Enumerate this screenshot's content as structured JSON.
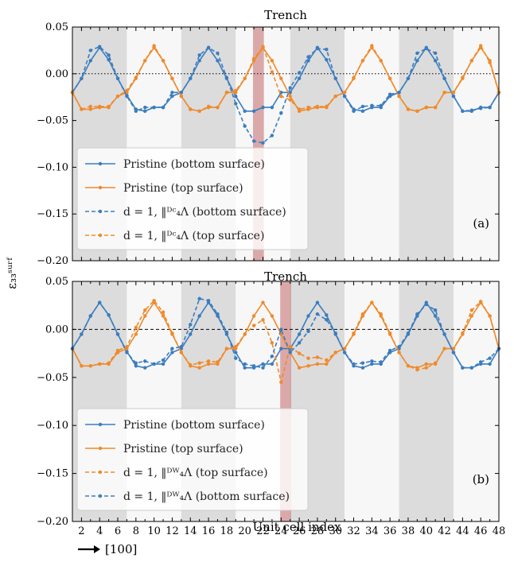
{
  "chart_data": [
    {
      "type": "line",
      "title": "Trench",
      "panel_label": "(a)",
      "ylabel": "ε₃₃ˢᵘʳᶠ",
      "xlabel": "Unit cell index",
      "xlim": [
        1,
        48
      ],
      "ylim": [
        -0.2,
        0.05
      ],
      "yticks": [
        "0.05",
        "0.00",
        "−0.05",
        "−0.10",
        "−0.15",
        "−0.20"
      ],
      "xticks": [
        "2",
        "4",
        "6",
        "8",
        "10",
        "12",
        "14",
        "16",
        "18",
        "20",
        "22",
        "24",
        "26",
        "28",
        "30",
        "32",
        "34",
        "36",
        "38",
        "40",
        "42",
        "44",
        "46",
        "48"
      ],
      "zero_line": "dotted",
      "trench_x": 21.5,
      "grid": false,
      "legend": "lower-left",
      "series": [
        {
          "name": "Pristine (bottom surface)",
          "color": "#3a7dbf",
          "style": "solid",
          "x": [
            1,
            2,
            3,
            4,
            5,
            6,
            7,
            8,
            9,
            10,
            11,
            12,
            13,
            14,
            15,
            16,
            17,
            18,
            19,
            20,
            21,
            22,
            23,
            24,
            25,
            26,
            27,
            28,
            29,
            30,
            31,
            32,
            33,
            34,
            35,
            36,
            37,
            38,
            39,
            40,
            41,
            42,
            43,
            44,
            45,
            46,
            47,
            48
          ],
          "y": [
            -0.02,
            -0.005,
            0.014,
            0.028,
            0.015,
            -0.005,
            -0.023,
            -0.038,
            -0.04,
            -0.036,
            -0.036,
            -0.024,
            -0.02,
            -0.005,
            0.014,
            0.028,
            0.014,
            -0.005,
            -0.024,
            -0.04,
            -0.04,
            -0.036,
            -0.036,
            -0.02,
            -0.02,
            -0.005,
            0.014,
            0.028,
            0.015,
            -0.005,
            -0.024,
            -0.038,
            -0.04,
            -0.036,
            -0.036,
            -0.024,
            -0.02,
            -0.005,
            0.014,
            0.028,
            0.014,
            -0.005,
            -0.024,
            -0.04,
            -0.04,
            -0.036,
            -0.036,
            -0.02
          ]
        },
        {
          "name": "Pristine (top surface)",
          "color": "#f08a2a",
          "style": "solid",
          "x": [
            1,
            2,
            3,
            4,
            5,
            6,
            7,
            8,
            9,
            10,
            11,
            12,
            13,
            14,
            15,
            16,
            17,
            18,
            19,
            20,
            21,
            22,
            23,
            24,
            25,
            26,
            27,
            28,
            29,
            30,
            31,
            32,
            33,
            34,
            35,
            36,
            37,
            38,
            39,
            40,
            41,
            42,
            43,
            44,
            45,
            46,
            47,
            48
          ],
          "y": [
            -0.02,
            -0.038,
            -0.038,
            -0.036,
            -0.036,
            -0.024,
            -0.02,
            -0.005,
            0.014,
            0.028,
            0.014,
            -0.005,
            -0.024,
            -0.038,
            -0.04,
            -0.036,
            -0.036,
            -0.02,
            -0.02,
            -0.005,
            0.014,
            0.028,
            0.014,
            -0.005,
            -0.024,
            -0.04,
            -0.038,
            -0.036,
            -0.036,
            -0.024,
            -0.02,
            -0.005,
            0.014,
            0.028,
            0.014,
            -0.005,
            -0.024,
            -0.038,
            -0.04,
            -0.036,
            -0.036,
            -0.02,
            -0.02,
            -0.005,
            0.014,
            0.028,
            0.014,
            -0.02
          ]
        },
        {
          "name": "d = 1, ‖ᴰᶜ₄Λ (bottom surface)",
          "color": "#3a7dbf",
          "style": "dashed",
          "x": [
            1,
            2,
            3,
            4,
            5,
            6,
            7,
            8,
            9,
            10,
            11,
            12,
            13,
            14,
            15,
            16,
            17,
            18,
            19,
            20,
            21,
            22,
            23,
            24,
            25,
            26,
            27,
            28,
            29,
            30,
            31,
            32,
            33,
            34,
            35,
            36,
            37,
            38,
            39,
            40,
            41,
            42,
            43,
            44,
            45,
            46,
            47,
            48
          ],
          "y": [
            -0.02,
            -0.005,
            0.025,
            0.029,
            0.02,
            -0.005,
            -0.024,
            -0.04,
            -0.036,
            -0.036,
            -0.036,
            -0.02,
            -0.02,
            -0.005,
            0.02,
            0.028,
            0.022,
            -0.004,
            -0.032,
            -0.056,
            -0.072,
            -0.074,
            -0.066,
            -0.042,
            -0.015,
            0.001,
            0.018,
            0.027,
            0.026,
            -0.005,
            -0.024,
            -0.04,
            -0.035,
            -0.034,
            -0.034,
            -0.022,
            -0.02,
            -0.005,
            0.022,
            0.027,
            0.022,
            -0.005,
            -0.024,
            -0.04,
            -0.039,
            -0.037,
            -0.036,
            -0.02
          ]
        },
        {
          "name": "d = 1, ‖ᴰᶜ₄Λ (top surface)",
          "color": "#f08a2a",
          "style": "dashed",
          "x": [
            1,
            2,
            3,
            4,
            5,
            6,
            7,
            8,
            9,
            10,
            11,
            12,
            13,
            14,
            15,
            16,
            17,
            18,
            19,
            20,
            21,
            22,
            23,
            24,
            25,
            26,
            27,
            28,
            29,
            30,
            31,
            32,
            33,
            34,
            35,
            36,
            37,
            38,
            39,
            40,
            41,
            42,
            43,
            44,
            45,
            46,
            47,
            48
          ],
          "y": [
            -0.02,
            -0.038,
            -0.035,
            -0.035,
            -0.035,
            -0.024,
            -0.018,
            -0.004,
            0.014,
            0.03,
            0.014,
            -0.005,
            -0.024,
            -0.038,
            -0.04,
            -0.035,
            -0.036,
            -0.02,
            -0.018,
            -0.005,
            0.016,
            0.029,
            0.002,
            -0.024,
            -0.028,
            -0.038,
            -0.036,
            -0.035,
            -0.035,
            -0.024,
            -0.02,
            -0.004,
            0.014,
            0.03,
            0.014,
            -0.005,
            -0.024,
            -0.038,
            -0.04,
            -0.036,
            -0.036,
            -0.02,
            -0.02,
            -0.004,
            0.014,
            0.03,
            0.012,
            -0.02
          ]
        }
      ]
    },
    {
      "type": "line",
      "title": "Trench",
      "panel_label": "(b)",
      "xlabel": "Unit cell index",
      "xlim": [
        1,
        48
      ],
      "ylim": [
        -0.2,
        0.05
      ],
      "yticks": [
        "0.05",
        "0.00",
        "−0.05",
        "−0.10",
        "−0.15",
        "−0.20"
      ],
      "xticks": [
        "2",
        "4",
        "6",
        "8",
        "10",
        "12",
        "14",
        "16",
        "18",
        "20",
        "22",
        "24",
        "26",
        "28",
        "30",
        "32",
        "34",
        "36",
        "38",
        "40",
        "42",
        "44",
        "46",
        "48"
      ],
      "zero_line": "dashed",
      "trench_x": 24.5,
      "grid": false,
      "legend": "lower-left",
      "series": [
        {
          "name": "Pristine (bottom surface)",
          "color": "#3a7dbf",
          "style": "solid",
          "x": [
            1,
            2,
            3,
            4,
            5,
            6,
            7,
            8,
            9,
            10,
            11,
            12,
            13,
            14,
            15,
            16,
            17,
            18,
            19,
            20,
            21,
            22,
            23,
            24,
            25,
            26,
            27,
            28,
            29,
            30,
            31,
            32,
            33,
            34,
            35,
            36,
            37,
            38,
            39,
            40,
            41,
            42,
            43,
            44,
            45,
            46,
            47,
            48
          ],
          "y": [
            -0.02,
            -0.005,
            0.014,
            0.028,
            0.015,
            -0.005,
            -0.023,
            -0.038,
            -0.04,
            -0.036,
            -0.036,
            -0.024,
            -0.02,
            -0.005,
            0.014,
            0.028,
            0.014,
            -0.005,
            -0.024,
            -0.04,
            -0.04,
            -0.036,
            -0.036,
            -0.02,
            -0.02,
            -0.005,
            0.014,
            0.028,
            0.015,
            -0.005,
            -0.024,
            -0.038,
            -0.04,
            -0.036,
            -0.036,
            -0.024,
            -0.02,
            -0.005,
            0.014,
            0.028,
            0.014,
            -0.005,
            -0.024,
            -0.04,
            -0.04,
            -0.036,
            -0.036,
            -0.02
          ]
        },
        {
          "name": "Pristine (top surface)",
          "color": "#f08a2a",
          "style": "solid",
          "x": [
            1,
            2,
            3,
            4,
            5,
            6,
            7,
            8,
            9,
            10,
            11,
            12,
            13,
            14,
            15,
            16,
            17,
            18,
            19,
            20,
            21,
            22,
            23,
            24,
            25,
            26,
            27,
            28,
            29,
            30,
            31,
            32,
            33,
            34,
            35,
            36,
            37,
            38,
            39,
            40,
            41,
            42,
            43,
            44,
            45,
            46,
            47,
            48
          ],
          "y": [
            -0.02,
            -0.038,
            -0.038,
            -0.036,
            -0.036,
            -0.024,
            -0.02,
            -0.005,
            0.014,
            0.028,
            0.014,
            -0.005,
            -0.024,
            -0.038,
            -0.04,
            -0.036,
            -0.036,
            -0.02,
            -0.02,
            -0.005,
            0.014,
            0.028,
            0.014,
            -0.005,
            -0.024,
            -0.04,
            -0.038,
            -0.036,
            -0.036,
            -0.024,
            -0.02,
            -0.005,
            0.014,
            0.028,
            0.014,
            -0.005,
            -0.024,
            -0.038,
            -0.04,
            -0.036,
            -0.036,
            -0.02,
            -0.02,
            -0.005,
            0.014,
            0.028,
            0.014,
            -0.02
          ]
        },
        {
          "name": "d = 1, ‖ᴰᵂ₄Λ (top surface)",
          "color": "#f08a2a",
          "style": "dashed",
          "x": [
            1,
            2,
            3,
            4,
            5,
            6,
            7,
            8,
            9,
            10,
            11,
            12,
            13,
            14,
            15,
            16,
            17,
            18,
            19,
            20,
            21,
            22,
            23,
            24,
            25,
            26,
            27,
            28,
            29,
            30,
            31,
            32,
            33,
            34,
            35,
            36,
            37,
            38,
            39,
            40,
            41,
            42,
            43,
            44,
            45,
            46,
            47,
            48
          ],
          "y": [
            -0.02,
            -0.038,
            -0.038,
            -0.036,
            -0.035,
            -0.022,
            -0.018,
            0.002,
            0.02,
            0.03,
            0.018,
            -0.004,
            -0.024,
            -0.037,
            -0.035,
            -0.033,
            -0.034,
            -0.02,
            -0.018,
            -0.005,
            0.004,
            0.01,
            -0.014,
            -0.055,
            -0.018,
            -0.025,
            -0.03,
            -0.029,
            -0.032,
            -0.024,
            -0.02,
            -0.004,
            0.016,
            0.028,
            0.016,
            -0.004,
            -0.024,
            -0.038,
            -0.042,
            -0.04,
            -0.035,
            -0.02,
            -0.02,
            -0.004,
            0.02,
            0.029,
            0.014,
            -0.02
          ]
        },
        {
          "name": "d = 1, ‖ᴰᵂ₄Λ (bottom surface)",
          "color": "#3a7dbf",
          "style": "dashed",
          "x": [
            1,
            2,
            3,
            4,
            5,
            6,
            7,
            8,
            9,
            10,
            11,
            12,
            13,
            14,
            15,
            16,
            17,
            18,
            19,
            20,
            21,
            22,
            23,
            24,
            25,
            26,
            27,
            28,
            29,
            30,
            31,
            32,
            33,
            34,
            35,
            36,
            37,
            38,
            39,
            40,
            41,
            42,
            43,
            44,
            45,
            46,
            47,
            48
          ],
          "y": [
            -0.02,
            -0.005,
            0.014,
            0.028,
            0.015,
            -0.005,
            -0.024,
            -0.035,
            -0.033,
            -0.036,
            -0.032,
            -0.02,
            -0.018,
            0.005,
            0.032,
            0.03,
            0.016,
            -0.003,
            -0.03,
            -0.036,
            -0.038,
            -0.04,
            -0.028,
            0.0,
            -0.024,
            -0.014,
            -0.002,
            0.016,
            0.01,
            -0.004,
            -0.024,
            -0.036,
            -0.035,
            -0.033,
            -0.034,
            -0.022,
            -0.018,
            -0.004,
            0.016,
            0.026,
            0.02,
            -0.005,
            -0.024,
            -0.04,
            -0.04,
            -0.034,
            -0.03,
            -0.02
          ]
        }
      ]
    }
  ],
  "shared": {
    "ylabel": "ε₃₃ˢᵘʳᶠ",
    "direction_label": "[100]",
    "bg_shaded": "#dcdcdc",
    "bg_light": "#f7f7f7",
    "trench_color": "#c0595d"
  }
}
